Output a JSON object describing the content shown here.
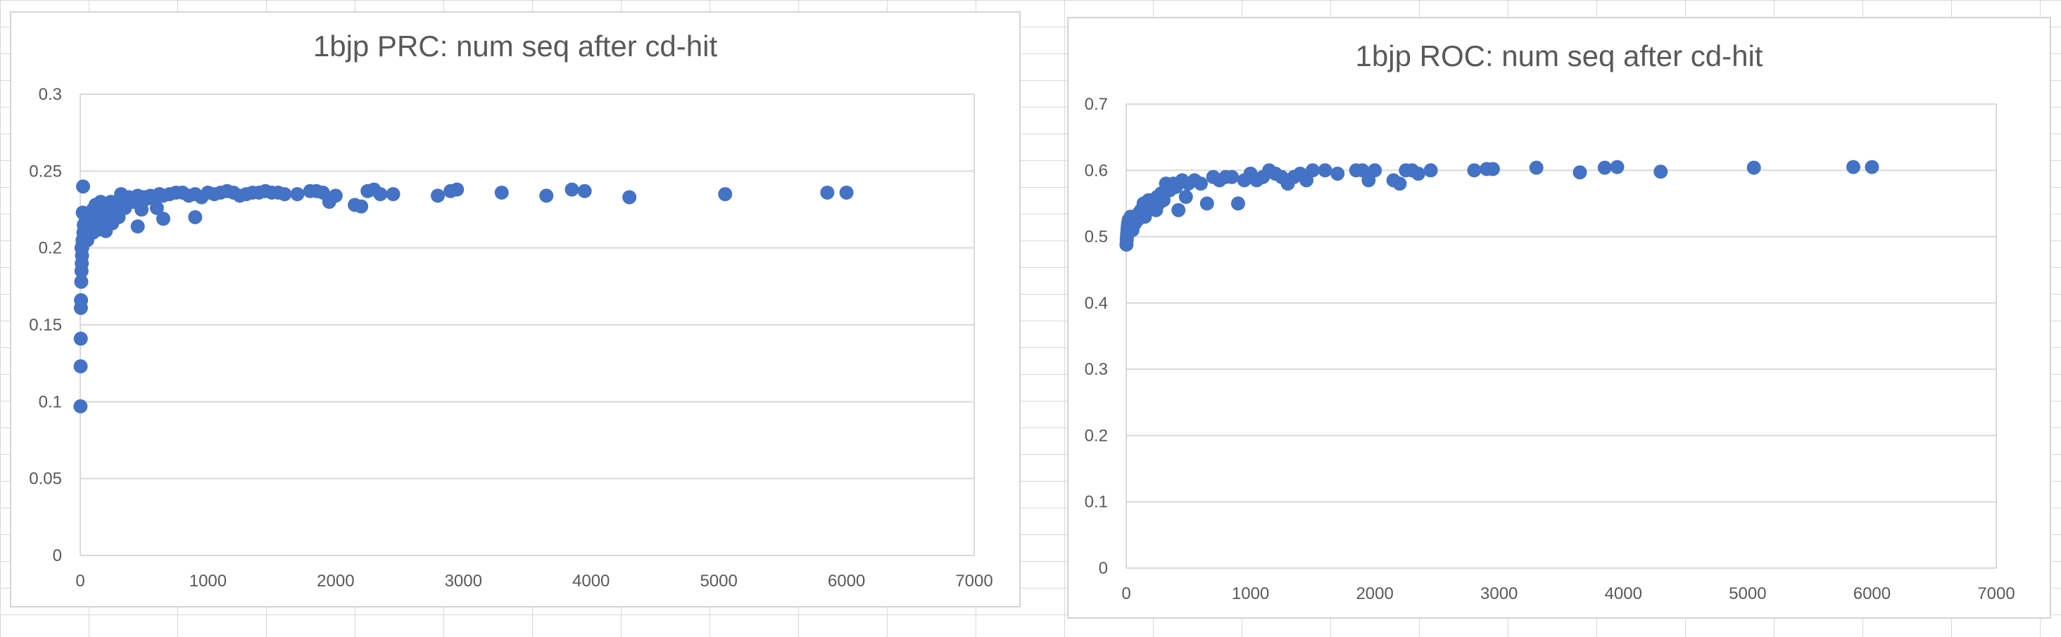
{
  "chart_data": [
    {
      "type": "scatter",
      "title": "1bjp PRC: num seq after cd-hit",
      "xlim": [
        0,
        7000
      ],
      "ylim": [
        0,
        0.3
      ],
      "xticks": [
        0,
        1000,
        2000,
        3000,
        4000,
        5000,
        6000,
        7000
      ],
      "yticks": [
        0,
        0.05,
        0.1,
        0.15,
        0.2,
        0.25,
        0.3
      ],
      "ytick_labels": [
        "0",
        "0.05",
        "0.1",
        "0.15",
        "0.2",
        "0.25",
        "0.3"
      ],
      "grid": "horizontal",
      "marker_color": "#4472c4",
      "series": [
        {
          "x": [
            2,
            3,
            4,
            5,
            6,
            8,
            10,
            12,
            14,
            15,
            18,
            20,
            22,
            25,
            28,
            30,
            35,
            40,
            45,
            50,
            55,
            60,
            70,
            80,
            90,
            100,
            110,
            120,
            140,
            150,
            160,
            180,
            200,
            220,
            240,
            250,
            260,
            280,
            300,
            320,
            340,
            350,
            380,
            400,
            420,
            450,
            480,
            500,
            520,
            550,
            600,
            620,
            650,
            700,
            750,
            800,
            850,
            900,
            950,
            1000,
            1050,
            1100,
            1150,
            1200,
            1250,
            1300,
            1350,
            1400,
            1450,
            1500,
            1550,
            1600,
            1700,
            1800,
            1850,
            1900,
            1950,
            2000,
            2150,
            2200,
            2250,
            2300,
            2350,
            2450,
            2800,
            2900,
            2950,
            3300,
            3650,
            3850,
            3950,
            4300,
            5050,
            5850,
            6000,
            10,
            20,
            30,
            40,
            60,
            80,
            100,
            120,
            150,
            200,
            250,
            300,
            350,
            450,
            600,
            650,
            900
          ],
          "y": [
            0.097,
            0.123,
            0.141,
            0.161,
            0.166,
            0.178,
            0.185,
            0.19,
            0.195,
            0.2,
            0.205,
            0.223,
            0.24,
            0.21,
            0.215,
            0.222,
            0.207,
            0.212,
            0.218,
            0.215,
            0.205,
            0.21,
            0.22,
            0.218,
            0.215,
            0.225,
            0.22,
            0.228,
            0.226,
            0.215,
            0.23,
            0.222,
            0.228,
            0.225,
            0.23,
            0.218,
            0.227,
            0.225,
            0.23,
            0.235,
            0.228,
            0.232,
            0.233,
            0.232,
            0.23,
            0.234,
            0.225,
            0.233,
            0.232,
            0.234,
            0.233,
            0.235,
            0.234,
            0.235,
            0.236,
            0.236,
            0.234,
            0.235,
            0.233,
            0.236,
            0.235,
            0.236,
            0.237,
            0.236,
            0.234,
            0.235,
            0.236,
            0.236,
            0.237,
            0.236,
            0.236,
            0.235,
            0.235,
            0.237,
            0.237,
            0.236,
            0.23,
            0.234,
            0.228,
            0.227,
            0.237,
            0.238,
            0.235,
            0.235,
            0.234,
            0.237,
            0.238,
            0.236,
            0.234,
            0.238,
            0.237,
            0.233,
            0.235,
            0.236,
            0.236,
            0.2,
            0.203,
            0.208,
            0.213,
            0.208,
            0.212,
            0.21,
            0.215,
            0.212,
            0.211,
            0.216,
            0.22,
            0.226,
            0.214,
            0.226,
            0.219,
            0.22
          ]
        }
      ]
    },
    {
      "type": "scatter",
      "title": "1bjp ROC: num seq after cd-hit",
      "xlim": [
        0,
        7000
      ],
      "ylim": [
        0,
        0.7
      ],
      "xticks": [
        0,
        1000,
        2000,
        3000,
        4000,
        5000,
        6000,
        7000
      ],
      "yticks": [
        0,
        0.1,
        0.2,
        0.3,
        0.4,
        0.5,
        0.6,
        0.7
      ],
      "ytick_labels": [
        "0",
        "0.1",
        "0.2",
        "0.3",
        "0.4",
        "0.5",
        "0.6",
        "0.7"
      ],
      "grid": "horizontal",
      "marker_color": "#4472c4",
      "series": [
        {
          "x": [
            2,
            4,
            6,
            8,
            10,
            12,
            15,
            20,
            25,
            30,
            35,
            40,
            50,
            60,
            70,
            80,
            90,
            100,
            120,
            140,
            150,
            160,
            180,
            200,
            220,
            240,
            250,
            260,
            280,
            300,
            320,
            350,
            380,
            400,
            420,
            450,
            480,
            500,
            550,
            600,
            650,
            700,
            750,
            800,
            850,
            900,
            950,
            1000,
            1050,
            1100,
            1150,
            1200,
            1250,
            1300,
            1350,
            1400,
            1450,
            1500,
            1600,
            1700,
            1850,
            1900,
            1950,
            2000,
            2150,
            2200,
            2250,
            2300,
            2350,
            2450,
            2800,
            2900,
            2950,
            3300,
            3650,
            3850,
            3950,
            4300,
            5050,
            5850,
            6000
          ],
          "y": [
            0.488,
            0.495,
            0.5,
            0.505,
            0.51,
            0.515,
            0.52,
            0.525,
            0.52,
            0.515,
            0.53,
            0.52,
            0.51,
            0.525,
            0.52,
            0.53,
            0.525,
            0.535,
            0.54,
            0.55,
            0.53,
            0.545,
            0.555,
            0.548,
            0.555,
            0.54,
            0.56,
            0.55,
            0.565,
            0.555,
            0.58,
            0.57,
            0.58,
            0.575,
            0.54,
            0.585,
            0.56,
            0.58,
            0.585,
            0.58,
            0.55,
            0.59,
            0.585,
            0.59,
            0.59,
            0.55,
            0.585,
            0.595,
            0.585,
            0.59,
            0.6,
            0.595,
            0.59,
            0.58,
            0.59,
            0.595,
            0.585,
            0.6,
            0.6,
            0.595,
            0.6,
            0.6,
            0.585,
            0.6,
            0.585,
            0.58,
            0.6,
            0.6,
            0.595,
            0.6,
            0.6,
            0.602,
            0.602,
            0.604,
            0.597,
            0.604,
            0.605,
            0.598,
            0.604,
            0.605,
            0.605
          ]
        }
      ]
    }
  ]
}
